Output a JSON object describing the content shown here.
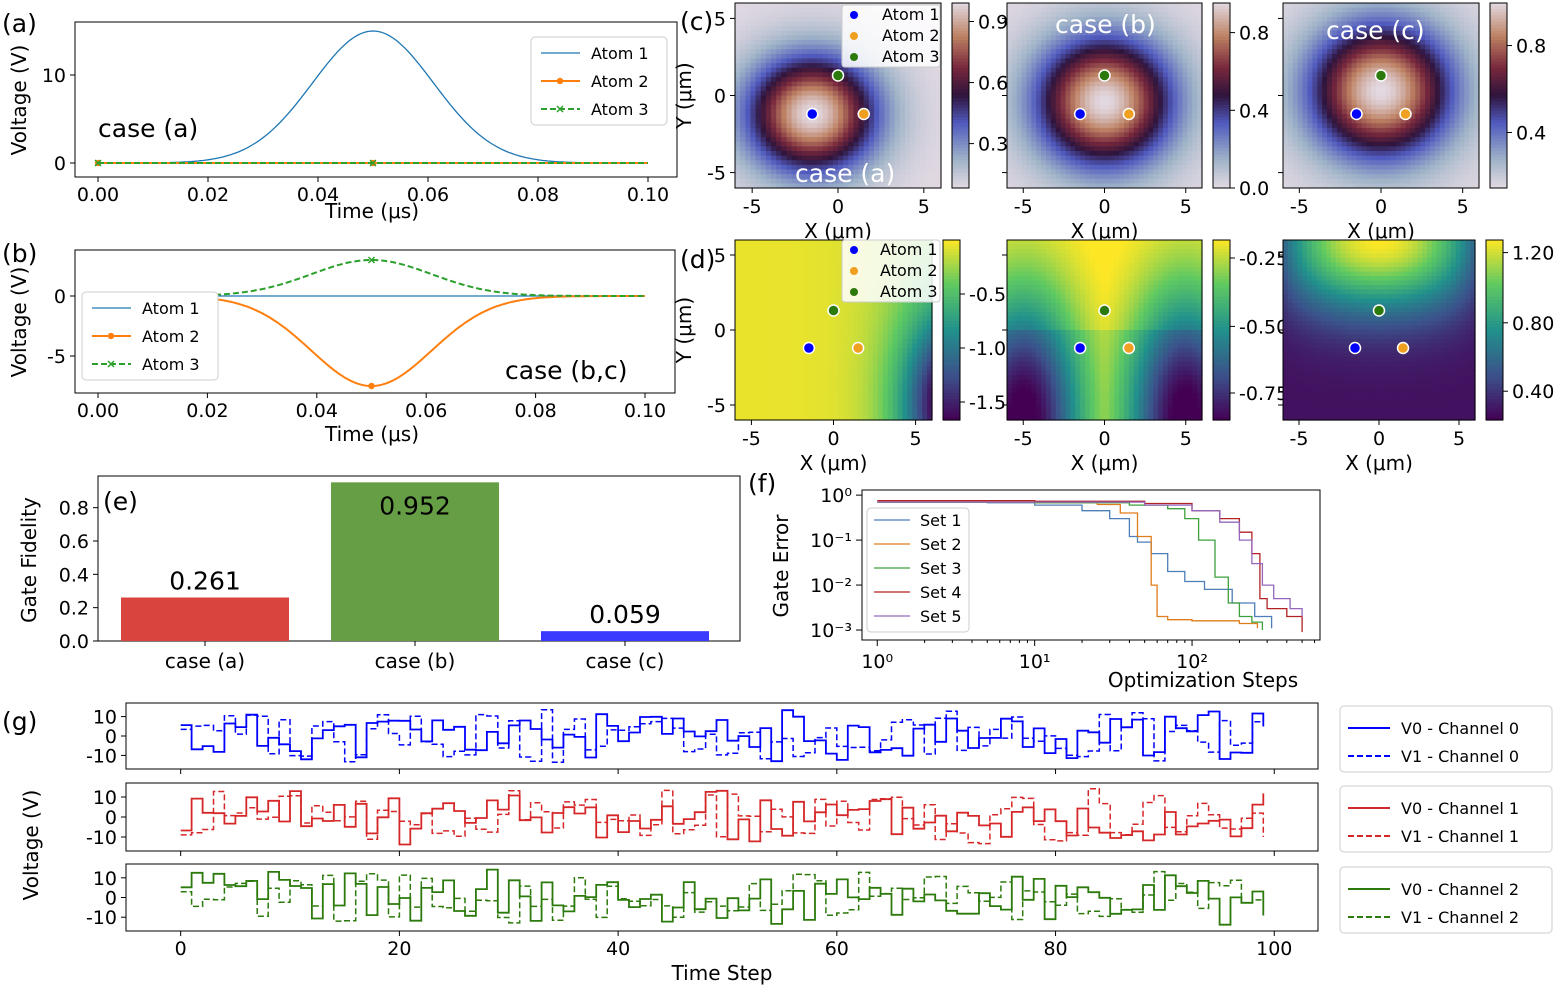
{
  "colors": {
    "atom1": "#1f77b4",
    "atom2": "#ff7f0e",
    "atom3": "#2ca02c",
    "blue": "#0000ff",
    "red": "#d62728",
    "green": "#2b7a0b",
    "bar_a": "#d9443e",
    "bar_b": "#669e45",
    "bar_c": "#3a3aff",
    "set1": "#4d7eb8",
    "set2": "#e07c1a",
    "set3": "#3da03d",
    "set4": "#b22222",
    "set5": "#9467bd"
  },
  "chart_data": [
    {
      "id": "a",
      "type": "line",
      "panel_label": "(a)",
      "annotation": "case (a)",
      "xlabel": "Time (μs)",
      "ylabel": "Voltage (V)",
      "xlim": [
        0,
        0.1
      ],
      "ylim": [
        -1,
        16
      ],
      "xticks": [
        "0.00",
        "0.02",
        "0.04",
        "0.06",
        "0.08",
        "0.10"
      ],
      "yticks": [
        "0",
        "10"
      ],
      "series": [
        {
          "name": "Atom 1",
          "shape": "gaussian",
          "center": 0.05,
          "sigma": 0.011,
          "peak": 15,
          "style": "solid"
        },
        {
          "name": "Atom 2",
          "shape": "constant",
          "value": 0,
          "marker": "dot",
          "style": "solid"
        },
        {
          "name": "Atom 3",
          "shape": "constant",
          "value": 0,
          "marker": "x",
          "style": "dashed"
        }
      ]
    },
    {
      "id": "b",
      "type": "line",
      "panel_label": "(b)",
      "annotation": "case (b,c)",
      "xlabel": "Time (μs)",
      "ylabel": "Voltage (V)",
      "xlim": [
        0,
        0.1
      ],
      "ylim": [
        -8,
        3.5
      ],
      "xticks": [
        "0.00",
        "0.02",
        "0.04",
        "0.06",
        "0.08",
        "0.10"
      ],
      "yticks": [
        "0",
        "-5"
      ],
      "series": [
        {
          "name": "Atom 1",
          "shape": "constant",
          "value": 0,
          "style": "solid"
        },
        {
          "name": "Atom 2",
          "shape": "gaussian",
          "center": 0.05,
          "sigma": 0.011,
          "peak": -7.5,
          "marker": "dot",
          "style": "solid"
        },
        {
          "name": "Atom 3",
          "shape": "gaussian",
          "center": 0.05,
          "sigma": 0.011,
          "peak": 3,
          "marker": "x",
          "style": "dashed"
        }
      ]
    },
    {
      "id": "c",
      "type": "heatmap",
      "panel_label": "(c)",
      "xlabel": "X (μm)",
      "ylabel": "Y (μm)",
      "xlim": [
        -6,
        6
      ],
      "ylim": [
        -6,
        6
      ],
      "xticks": [
        "-5",
        "0",
        "5"
      ],
      "yticks": [
        "5",
        "0",
        "-5"
      ],
      "atoms": [
        {
          "name": "Atom 1",
          "x": -1.5,
          "y": -1.2
        },
        {
          "name": "Atom 2",
          "x": 1.5,
          "y": -1.2
        },
        {
          "name": "Atom 3",
          "x": 0,
          "y": 1.3
        }
      ],
      "maps": [
        {
          "title": "case (a)",
          "colorbar_ticks": [
            "0.9",
            "0.6",
            "0.3"
          ],
          "clim": [
            0.05,
            1.0
          ]
        },
        {
          "title": "case (b)",
          "colorbar_ticks": [
            "0.8",
            "0.4",
            "0.0"
          ],
          "clim": [
            0.0,
            0.95
          ]
        },
        {
          "title": "case (c)",
          "colorbar_ticks": [
            "0.8",
            "0.4"
          ],
          "clim": [
            0.1,
            1.0
          ]
        }
      ]
    },
    {
      "id": "d",
      "type": "heatmap",
      "panel_label": "(d)",
      "xlabel": "X (μm)",
      "ylabel": "Y (μm)",
      "xlim": [
        -6,
        6
      ],
      "ylim": [
        -6,
        6
      ],
      "xticks": [
        "-5",
        "0",
        "5"
      ],
      "yticks": [
        "5",
        "0",
        "-5"
      ],
      "maps": [
        {
          "colorbar_ticks": [
            "-0.5",
            "-1.0",
            "-1.5"
          ],
          "clim": [
            -1.7,
            -0.05
          ]
        },
        {
          "colorbar_ticks": [
            "-0.25",
            "-0.50",
            "-0.75"
          ],
          "clim": [
            -0.88,
            -0.18
          ]
        },
        {
          "colorbar_ticks": [
            "1.20",
            "0.80",
            "0.40"
          ],
          "clim": [
            0.2,
            1.25
          ]
        }
      ]
    },
    {
      "id": "e",
      "type": "bar",
      "panel_label": "(e)",
      "ylabel": "Gate Fidelity",
      "ylim": [
        0,
        0.99
      ],
      "yticks": [
        "0.0",
        "0.2",
        "0.4",
        "0.6",
        "0.8"
      ],
      "categories": [
        "case (a)",
        "case (b)",
        "case (c)"
      ],
      "values": [
        0.261,
        0.952,
        0.059
      ],
      "value_labels": [
        "0.261",
        "0.952",
        "0.059"
      ]
    },
    {
      "id": "f",
      "type": "line",
      "panel_label": "(f)",
      "xscale": "log",
      "yscale": "log",
      "xlabel": "Optimization Steps",
      "ylabel": "Gate Error",
      "xlim": [
        0.8,
        650
      ],
      "ylim": [
        0.0006,
        1.3
      ],
      "series": [
        {
          "name": "Set 1",
          "points": [
            [
              1,
              0.7
            ],
            [
              5,
              0.68
            ],
            [
              10,
              0.6
            ],
            [
              20,
              0.45
            ],
            [
              30,
              0.3
            ],
            [
              40,
              0.12
            ],
            [
              45,
              0.09
            ],
            [
              55,
              0.05
            ],
            [
              70,
              0.02
            ],
            [
              90,
              0.012
            ],
            [
              120,
              0.008
            ],
            [
              180,
              0.004
            ],
            [
              250,
              0.002
            ],
            [
              320,
              0.0011
            ]
          ]
        },
        {
          "name": "Set 2",
          "points": [
            [
              1,
              0.7
            ],
            [
              10,
              0.68
            ],
            [
              25,
              0.62
            ],
            [
              35,
              0.4
            ],
            [
              45,
              0.12
            ],
            [
              55,
              0.01
            ],
            [
              60,
              0.002
            ],
            [
              70,
              0.0017
            ],
            [
              100,
              0.0016
            ],
            [
              200,
              0.0014
            ],
            [
              260,
              0.0011
            ]
          ]
        },
        {
          "name": "Set 3",
          "points": [
            [
              1,
              0.7
            ],
            [
              10,
              0.68
            ],
            [
              40,
              0.6
            ],
            [
              70,
              0.5
            ],
            [
              90,
              0.3
            ],
            [
              110,
              0.1
            ],
            [
              140,
              0.015
            ],
            [
              170,
              0.004
            ],
            [
              200,
              0.002
            ],
            [
              240,
              0.0015
            ],
            [
              280,
              0.001
            ]
          ]
        },
        {
          "name": "Set 4",
          "points": [
            [
              1,
              0.75
            ],
            [
              10,
              0.73
            ],
            [
              50,
              0.65
            ],
            [
              100,
              0.45
            ],
            [
              150,
              0.3
            ],
            [
              200,
              0.15
            ],
            [
              240,
              0.05
            ],
            [
              270,
              0.005
            ],
            [
              300,
              0.003
            ],
            [
              400,
              0.002
            ],
            [
              500,
              0.0009
            ]
          ]
        },
        {
          "name": "Set 5",
          "points": [
            [
              1,
              0.7
            ],
            [
              10,
              0.7
            ],
            [
              50,
              0.6
            ],
            [
              100,
              0.45
            ],
            [
              150,
              0.25
            ],
            [
              200,
              0.1
            ],
            [
              240,
              0.03
            ],
            [
              280,
              0.01
            ],
            [
              330,
              0.005
            ],
            [
              420,
              0.003
            ],
            [
              500,
              0.002
            ]
          ]
        }
      ],
      "xticks": [
        "10⁰",
        "10¹",
        "10²"
      ],
      "yticks": [
        "10⁰",
        "10⁻¹",
        "10⁻²",
        "10⁻³"
      ]
    },
    {
      "id": "g",
      "type": "line",
      "panel_label": "(g)",
      "xlabel": "Time Step",
      "ylabel": "Voltage (V)",
      "xlim": [
        -5,
        104
      ],
      "ylim": [
        -17,
        17
      ],
      "xticks": [
        "0",
        "20",
        "40",
        "60",
        "80",
        "100"
      ],
      "yticks": [
        "10",
        "0",
        "-10"
      ],
      "steps": 100,
      "subplots": [
        {
          "channel": 0,
          "legend": [
            "V0 - Channel 0",
            "V1 - Channel 0"
          ],
          "seed": 11
        },
        {
          "channel": 1,
          "legend": [
            "V0 - Channel 1",
            "V1 - Channel 1"
          ],
          "seed": 23
        },
        {
          "channel": 2,
          "legend": [
            "V0 - Channel 2",
            "V1 - Channel 2"
          ],
          "seed": 37
        }
      ]
    }
  ]
}
